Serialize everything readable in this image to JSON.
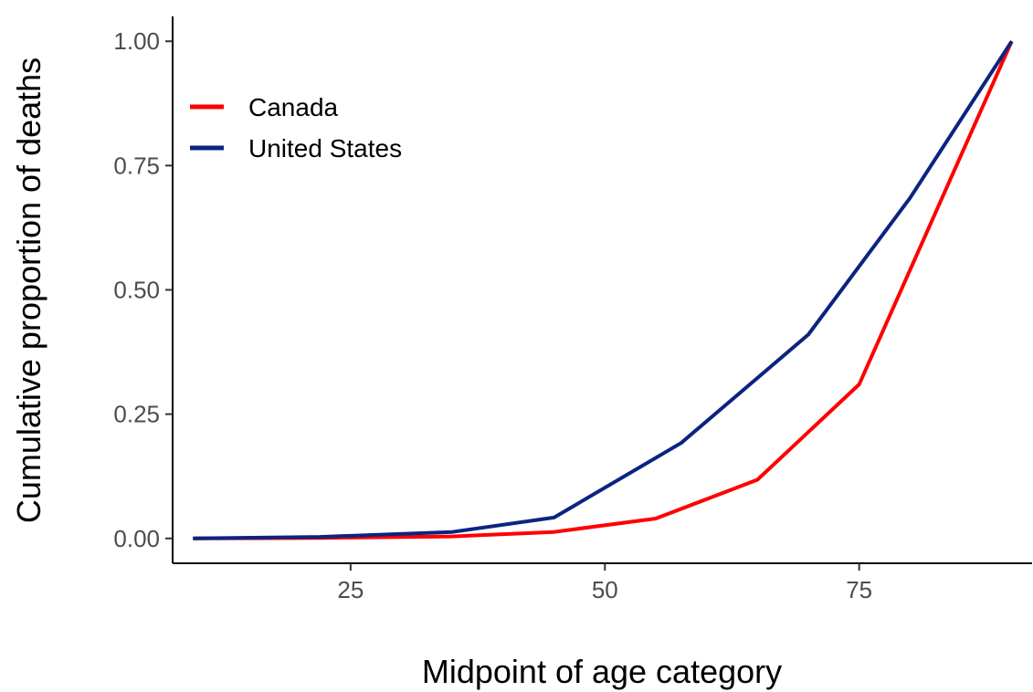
{
  "chart_data": {
    "type": "line",
    "title": "",
    "xlabel": "Midpoint of age category",
    "ylabel": "Cumulative proportion of deaths",
    "xlim": [
      7.5,
      92
    ],
    "ylim": [
      -0.05,
      1.05
    ],
    "x_ticks": [
      25,
      50,
      75
    ],
    "x_tick_labels": [
      "25",
      "50",
      "75"
    ],
    "y_ticks": [
      0,
      0.25,
      0.5,
      0.75,
      1.0
    ],
    "y_tick_labels": [
      "0.00",
      "0.25",
      "0.50",
      "0.75",
      "1.00"
    ],
    "grid": false,
    "legend_position": "top-left",
    "series": [
      {
        "name": "Canada",
        "color": "#ff0000",
        "x": [
          9.5,
          22,
          35,
          45,
          55,
          65,
          75,
          90
        ],
        "y": [
          0.0,
          0.001,
          0.004,
          0.013,
          0.04,
          0.118,
          0.31,
          1.0
        ]
      },
      {
        "name": "United States",
        "color": "#0b2480",
        "x": [
          9.5,
          22,
          35,
          45,
          57.5,
          70,
          80,
          90
        ],
        "y": [
          0.0,
          0.003,
          0.013,
          0.042,
          0.192,
          0.41,
          0.685,
          1.0
        ]
      }
    ]
  }
}
